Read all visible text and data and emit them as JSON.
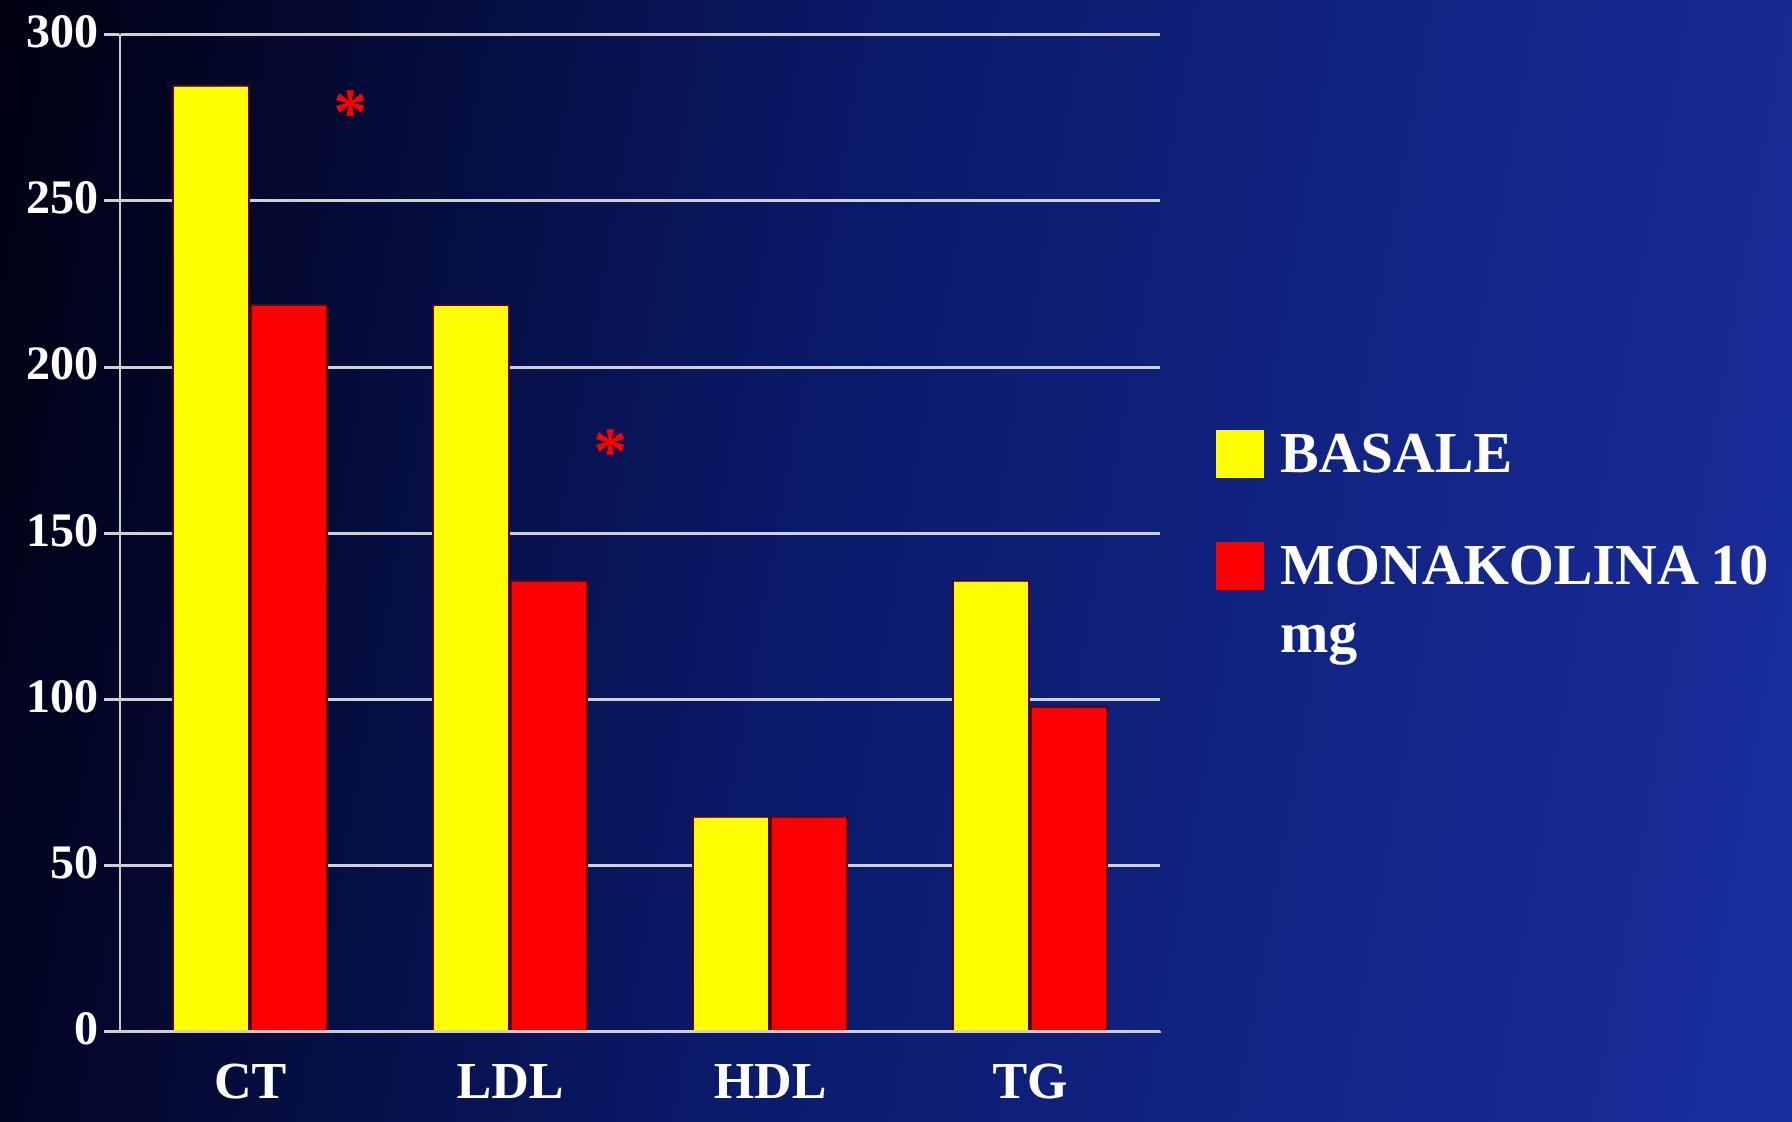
{
  "chart_data": {
    "type": "bar",
    "categories": [
      "CT",
      "LDL",
      "HDL",
      "TG"
    ],
    "series": [
      {
        "name": "BASALE",
        "color": "#ffff00",
        "values": [
          285,
          219,
          65,
          136
        ]
      },
      {
        "name": "MONAKOLINA 10 mg",
        "color": "#ff0000",
        "values": [
          219,
          136,
          65,
          98
        ]
      }
    ],
    "ylim": [
      0,
      300
    ],
    "yticks": [
      0,
      50,
      100,
      150,
      200,
      250,
      300
    ],
    "grid": "y",
    "legend": "right",
    "annotations": [
      {
        "text": "*",
        "x": "CT",
        "y": 280
      },
      {
        "text": "*",
        "x": "LDL",
        "y": 178
      }
    ]
  }
}
